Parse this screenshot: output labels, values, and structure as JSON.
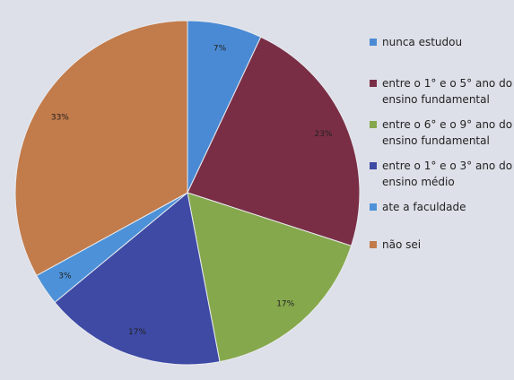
{
  "chart_data": {
    "type": "pie",
    "categories": [
      "nunca estudou",
      "entre o 1° e o 5° ano do ensino fundamental",
      "entre o 6° e o 9° ano do ensino fundamental",
      "entre o 1° e o 3° ano do ensino médio",
      "ate a faculdade",
      "não sei"
    ],
    "values": [
      7,
      23,
      17,
      17,
      3,
      33
    ],
    "value_labels": [
      "7%",
      "23%",
      "17%",
      "17%",
      "3%",
      "33%"
    ],
    "colors": [
      "#4a8ad4",
      "#7a2e45",
      "#86a84c",
      "#3e4aa4",
      "#4d92d8",
      "#c27b4a"
    ]
  }
}
